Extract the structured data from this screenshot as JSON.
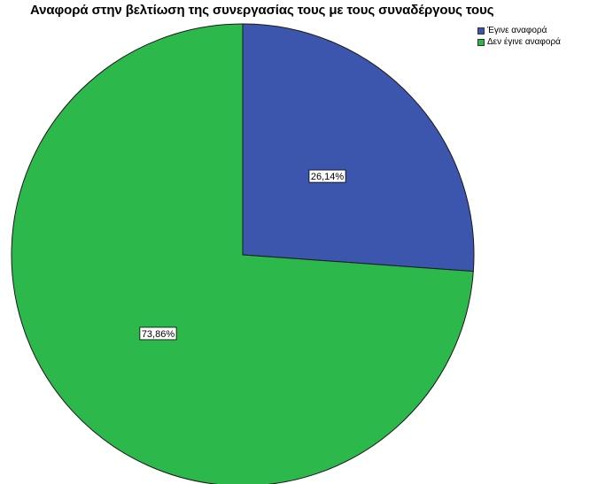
{
  "chart_data": {
    "type": "pie",
    "title": "Αναφορά στην βελτίωση της συνεργασίας τους με τους συναδέργους τους",
    "categories": [
      "Έγινε αναφορά",
      "Δεν έγινε αναφορά"
    ],
    "values": [
      26.14,
      73.86
    ],
    "labels": [
      "26,14%",
      "73,86%"
    ],
    "colors": [
      "#3d56ad",
      "#2db84b"
    ],
    "legend_position": "top-right"
  }
}
